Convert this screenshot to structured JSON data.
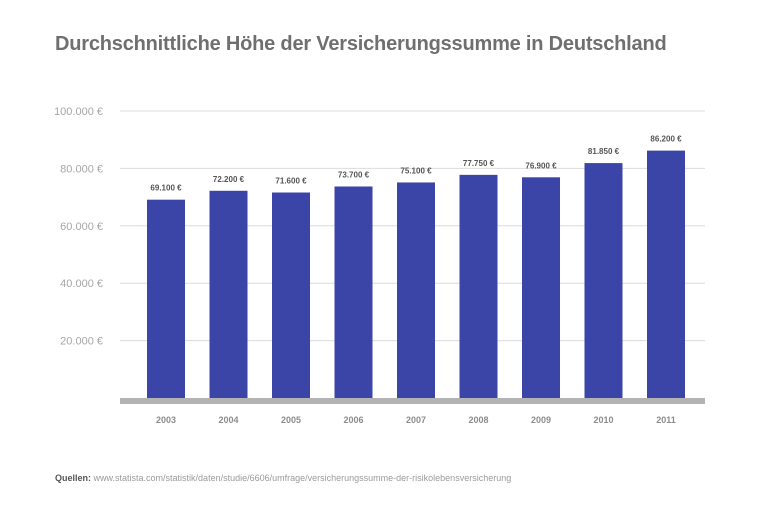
{
  "chart_data": {
    "type": "bar",
    "title": "Durchschnittliche Höhe der Versicherungssumme in Deutschland",
    "xlabel": "",
    "ylabel": "",
    "categories": [
      "2003",
      "2004",
      "2005",
      "2006",
      "2007",
      "2008",
      "2009",
      "2010",
      "2011"
    ],
    "values": [
      69100,
      72200,
      71600,
      73700,
      75100,
      77750,
      76900,
      81850,
      86200
    ],
    "value_labels": [
      "69.100 €",
      "72.200 €",
      "71.600 €",
      "73.700 €",
      "75.100 €",
      "77.750 €",
      "76.900 €",
      "81.850 €",
      "86.200 €"
    ],
    "yticks": [
      20000,
      40000,
      60000,
      80000,
      100000
    ],
    "ytick_labels": [
      "20.000 €",
      "40.000 €",
      "60.000 €",
      "80.000 €",
      "100.000 €"
    ],
    "ylim": [
      0,
      100000
    ],
    "grid": true,
    "bar_color": "#3b45a7",
    "baseline_color": "#b3b3b3",
    "grid_color": "#dcdcdc"
  },
  "footer": {
    "source_label": "Quellen:",
    "source_text": "www.statista.com/statistik/daten/studie/6606/umfrage/versicherungssumme-der-risikolebensversicherung"
  }
}
